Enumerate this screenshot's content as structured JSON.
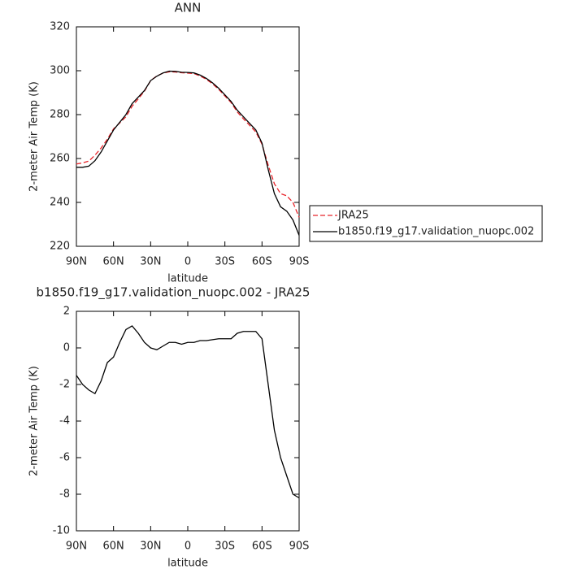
{
  "chart_data": [
    {
      "type": "line",
      "title": "ANN",
      "ylabel": "2-meter Air Temp (K)",
      "xlabel": "latitude",
      "x": [
        90,
        85,
        80,
        75,
        70,
        65,
        60,
        55,
        50,
        45,
        40,
        35,
        30,
        25,
        20,
        15,
        10,
        5,
        0,
        -5,
        -10,
        -15,
        -20,
        -25,
        -30,
        -35,
        -40,
        -45,
        -50,
        -55,
        -60,
        -65,
        -70,
        -75,
        -80,
        -85,
        -90
      ],
      "xlim": [
        90,
        -90
      ],
      "xticks": [
        {
          "value": 90,
          "label": "90N"
        },
        {
          "value": 60,
          "label": "60N"
        },
        {
          "value": 30,
          "label": "30N"
        },
        0,
        {
          "value": -30,
          "label": "30S"
        },
        {
          "value": -60,
          "label": "60S"
        },
        {
          "value": -90,
          "label": "90S"
        }
      ],
      "ylim": [
        220,
        320
      ],
      "yticks": [
        220,
        240,
        260,
        280,
        300,
        320
      ],
      "legend": "right",
      "series": [
        {
          "name": "JRA25",
          "color": "#e8242a",
          "linestyle": "dashed",
          "values": [
            257.5,
            258,
            258.8,
            261.5,
            264.8,
            268.8,
            273.5,
            276.2,
            279,
            283.8,
            287.2,
            290.7,
            295.5,
            297.6,
            298.9,
            299.5,
            299.4,
            299.1,
            298.9,
            298.7,
            297.6,
            296.1,
            294.05,
            291.5,
            288.5,
            285.5,
            281.2,
            278.1,
            275.1,
            272.1,
            266.5,
            257,
            248.5,
            244,
            243,
            240,
            233.2
          ]
        },
        {
          "name": "b1850.f19_g17.validation_nuopc.002",
          "color": "#000000",
          "linestyle": "solid",
          "values": [
            256,
            256,
            256.5,
            259,
            263,
            268,
            273,
            276.5,
            280,
            285,
            288,
            291,
            295.5,
            297.5,
            299,
            299.8,
            299.7,
            299.3,
            299.2,
            299,
            298,
            296.5,
            294.5,
            292,
            289,
            286,
            282,
            279,
            276,
            273,
            267,
            255,
            244,
            238,
            236,
            232,
            225
          ]
        }
      ]
    },
    {
      "type": "line",
      "title": "b1850.f19_g17.validation_nuopc.002 - JRA25",
      "ylabel": "2-meter Air Temp (K)",
      "xlabel": "latitude",
      "x": [
        90,
        85,
        80,
        75,
        70,
        65,
        60,
        55,
        50,
        45,
        40,
        35,
        30,
        25,
        20,
        15,
        10,
        5,
        0,
        -5,
        -10,
        -15,
        -20,
        -25,
        -30,
        -35,
        -40,
        -45,
        -50,
        -55,
        -60,
        -65,
        -70,
        -75,
        -80,
        -85,
        -90
      ],
      "xlim": [
        90,
        -90
      ],
      "xticks": [
        {
          "value": 90,
          "label": "90N"
        },
        {
          "value": 60,
          "label": "60N"
        },
        {
          "value": 30,
          "label": "30N"
        },
        0,
        {
          "value": -30,
          "label": "30S"
        },
        {
          "value": -60,
          "label": "60S"
        },
        {
          "value": -90,
          "label": "90S"
        }
      ],
      "ylim": [
        -10,
        2
      ],
      "yticks": [
        -10,
        -8,
        -6,
        -4,
        -2,
        0,
        2
      ],
      "series": [
        {
          "color": "#000000",
          "linestyle": "solid",
          "values": [
            -1.5,
            -2.0,
            -2.3,
            -2.5,
            -1.8,
            -0.8,
            -0.5,
            0.3,
            1.0,
            1.2,
            0.8,
            0.3,
            0.0,
            -0.1,
            0.1,
            0.3,
            0.3,
            0.2,
            0.3,
            0.3,
            0.4,
            0.4,
            0.45,
            0.5,
            0.5,
            0.5,
            0.8,
            0.9,
            0.9,
            0.9,
            0.5,
            -2,
            -4.5,
            -6,
            -7,
            -8,
            -8.2
          ]
        }
      ]
    }
  ]
}
